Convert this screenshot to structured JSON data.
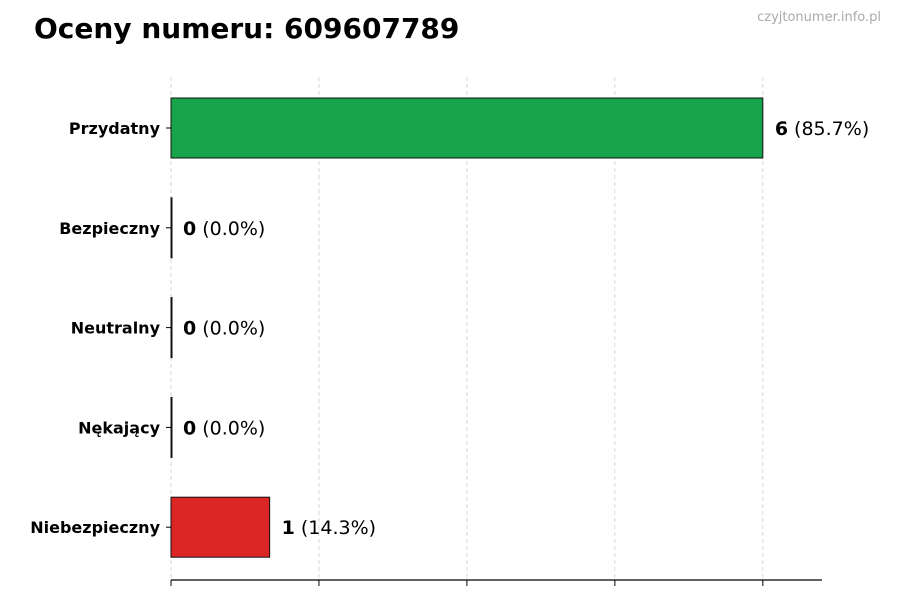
{
  "title": "Oceny numeru: 609607789",
  "watermark": "czyjtonumer.info.pl",
  "chart_data": {
    "type": "bar",
    "orientation": "horizontal",
    "title": "Oceny numeru: 609607789",
    "xlabel": "",
    "ylabel": "",
    "categories": [
      "Przydatny",
      "Bezpieczny",
      "Neutralny",
      "Nękający",
      "Niebezpieczny"
    ],
    "values": [
      6,
      0,
      0,
      0,
      1
    ],
    "labels": [
      "(85.7%)",
      "(0.0%)",
      "(0.0%)",
      "(0.0%)",
      "(14.3%)"
    ],
    "colors": [
      "#16a34a",
      "#6b7280",
      "#9ca3af",
      "#f59e0b",
      "#dc2626"
    ],
    "xlim": [
      0,
      6.6
    ],
    "xticks": [
      0,
      1.5,
      3,
      4.5,
      6
    ],
    "grid": "vertical dashed",
    "legend": "none"
  }
}
